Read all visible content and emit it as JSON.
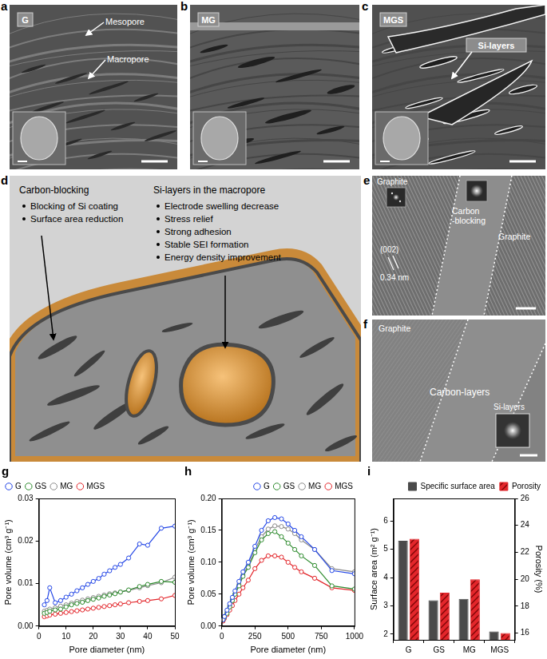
{
  "panel_letters": [
    "a",
    "b",
    "c",
    "d",
    "e",
    "f",
    "g",
    "h",
    "i"
  ],
  "sem_panels": [
    {
      "label": "G",
      "annotations": [
        "Mesopore",
        "Macropore"
      ]
    },
    {
      "label": "MG"
    },
    {
      "label": "MGS",
      "annotations": [
        "Si-layers"
      ]
    }
  ],
  "schematic": {
    "groups": [
      {
        "title": "Carbon-blocking",
        "points": [
          "Blocking of Si coating",
          "Surface area reduction"
        ]
      },
      {
        "title": "Si-layers in the macropore",
        "points": [
          "Electrode swelling decrease",
          "Stress relief",
          "Strong adhesion",
          "Stable SEI formation",
          "Energy density improvement"
        ]
      }
    ]
  },
  "tem_e": {
    "regions": [
      "Graphite",
      "Carbon\n-blocking",
      "Graphite"
    ],
    "lattice": [
      "(002)",
      "0.34 nm"
    ]
  },
  "tem_f": {
    "regions": [
      "Graphite",
      "Carbon-layers"
    ],
    "inset": "Si-layers"
  },
  "chart_data": [
    {
      "type": "line",
      "x_label": "Pore diameter (nm)",
      "y_label": "Pore volume (cm³ g⁻¹)",
      "x": [
        2,
        3,
        4,
        6,
        8,
        10,
        12,
        14,
        16,
        18,
        20,
        22,
        24,
        26,
        28,
        30,
        33,
        37,
        40,
        45,
        50
      ],
      "xlim": [
        0,
        50
      ],
      "xticks": [
        0,
        10,
        20,
        30,
        40,
        50
      ],
      "ylim": [
        0,
        0.03
      ],
      "yticks": [
        {
          "value": 0,
          "label": "0.00"
        },
        0.01,
        0.02,
        0.03
      ],
      "grid": false,
      "legend": "upper left",
      "marker": "circle",
      "series": [
        {
          "name": "G",
          "color": "#2447e6",
          "values": [
            0.005,
            0.006,
            0.009,
            0.0055,
            0.006,
            0.0068,
            0.0075,
            0.0083,
            0.009,
            0.0098,
            0.0105,
            0.0112,
            0.0122,
            0.013,
            0.0138,
            0.0145,
            0.016,
            0.0193,
            0.019,
            0.023,
            0.0235
          ]
        },
        {
          "name": "GS",
          "color": "#2e8b2e",
          "values": [
            0.003,
            0.0032,
            0.0035,
            0.0038,
            0.004,
            0.0045,
            0.005,
            0.0053,
            0.0056,
            0.006,
            0.0063,
            0.0066,
            0.007,
            0.0073,
            0.0076,
            0.008,
            0.0085,
            0.0093,
            0.0098,
            0.0105,
            0.0103
          ]
        },
        {
          "name": "MG",
          "color": "#8a8a8a",
          "values": [
            0.0035,
            0.0037,
            0.004,
            0.0043,
            0.0047,
            0.005,
            0.0054,
            0.0058,
            0.0061,
            0.0064,
            0.0067,
            0.007,
            0.0073,
            0.0076,
            0.0078,
            0.008,
            0.0084,
            0.009,
            0.0095,
            0.0102,
            0.0115
          ]
        },
        {
          "name": "MGS",
          "color": "#e3262b",
          "values": [
            0.0022,
            0.0024,
            0.0026,
            0.0028,
            0.003,
            0.0032,
            0.0034,
            0.0036,
            0.0038,
            0.004,
            0.0042,
            0.0044,
            0.0046,
            0.0048,
            0.005,
            0.0052,
            0.0055,
            0.0058,
            0.006,
            0.0064,
            0.0072
          ]
        }
      ]
    },
    {
      "type": "line",
      "x_label": "Pore diameter (nm)",
      "y_label": "Pore volume (cm³ g⁻¹)",
      "x": [
        10,
        20,
        40,
        60,
        80,
        100,
        130,
        160,
        200,
        250,
        300,
        350,
        400,
        450,
        500,
        550,
        600,
        700,
        830,
        1000
      ],
      "xlim": [
        0,
        1000
      ],
      "xticks": [
        0,
        250,
        500,
        750,
        1000
      ],
      "ylim": [
        0,
        0.2
      ],
      "yticks": [
        {
          "value": 0,
          "label": "0.00"
        },
        0.05,
        {
          "value": 0.1,
          "label": "0.10"
        },
        0.15,
        {
          "value": 0.2,
          "label": "0.20"
        }
      ],
      "grid": false,
      "legend": "upper right",
      "marker": "circle",
      "series": [
        {
          "name": "G",
          "color": "#2447e6",
          "values": [
            0.01,
            0.015,
            0.025,
            0.035,
            0.045,
            0.055,
            0.07,
            0.085,
            0.1,
            0.125,
            0.15,
            0.165,
            0.17,
            0.168,
            0.16,
            0.15,
            0.14,
            0.12,
            0.087,
            0.082
          ]
        },
        {
          "name": "GS",
          "color": "#2e8b2e",
          "values": [
            0.01,
            0.014,
            0.02,
            0.03,
            0.04,
            0.05,
            0.063,
            0.078,
            0.092,
            0.115,
            0.135,
            0.145,
            0.148,
            0.14,
            0.13,
            0.12,
            0.11,
            0.095,
            0.063,
            0.058
          ]
        },
        {
          "name": "MG",
          "color": "#8a8a8a",
          "values": [
            0.01,
            0.015,
            0.022,
            0.032,
            0.042,
            0.05,
            0.065,
            0.08,
            0.095,
            0.12,
            0.14,
            0.152,
            0.157,
            0.156,
            0.152,
            0.145,
            0.135,
            0.12,
            0.09,
            0.085
          ]
        },
        {
          "name": "MGS",
          "color": "#e3262b",
          "values": [
            0.008,
            0.012,
            0.018,
            0.025,
            0.032,
            0.04,
            0.05,
            0.06,
            0.072,
            0.09,
            0.103,
            0.11,
            0.11,
            0.108,
            0.1,
            0.092,
            0.085,
            0.075,
            0.06,
            0.056
          ]
        }
      ]
    },
    {
      "type": "bar",
      "categories": [
        "G",
        "GS",
        "MG",
        "MGS"
      ],
      "y_label": "Surface area (m² g⁻¹)",
      "y2_label": "Porosity (%)",
      "ylim": [
        1.8,
        6.8
      ],
      "yticks": [
        2,
        3,
        4,
        5,
        6
      ],
      "y2lim": [
        15.5,
        26
      ],
      "y2ticks": [
        16,
        18,
        20,
        22,
        24,
        26
      ],
      "grid": false,
      "legend": "upper right",
      "series": [
        {
          "name": "Specific surface area",
          "color": "#4a4a4a",
          "values": [
            5.3,
            3.2,
            3.25,
            2.1
          ]
        },
        {
          "name": "Porosity",
          "color": "#e3262b",
          "values": [
            23,
            19,
            20,
            16
          ],
          "axis": "y2"
        }
      ]
    }
  ]
}
